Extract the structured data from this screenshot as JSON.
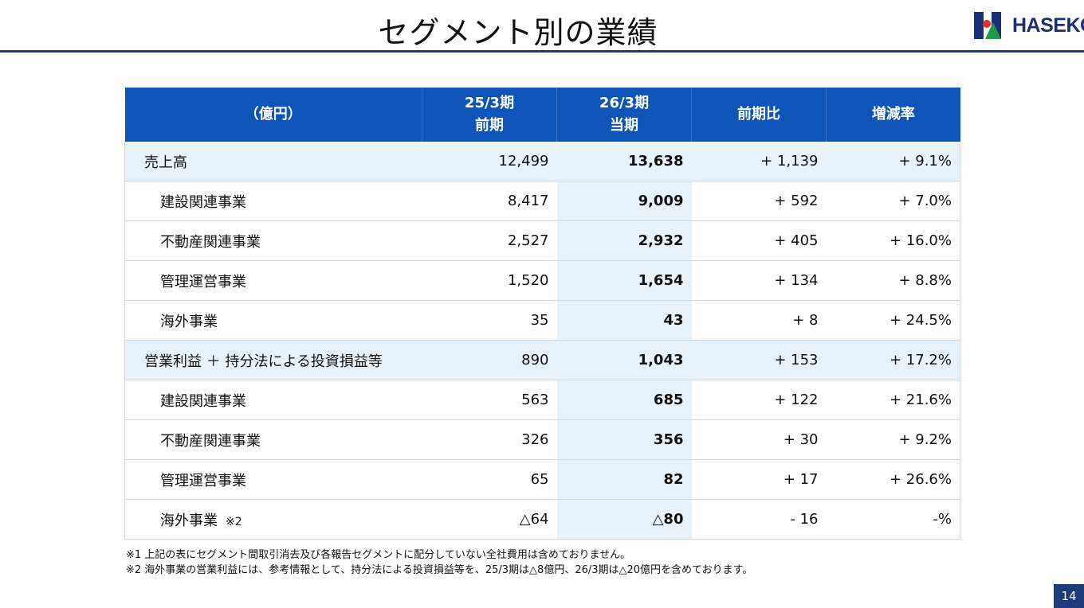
{
  "page": {
    "title": "セグメント別の業績",
    "page_number": "14"
  },
  "logo": {
    "text": "HASEKO"
  },
  "table": {
    "headers": {
      "unit": "（億円）",
      "prev_period_top": "25/3期",
      "prev_period_bottom": "前期",
      "cur_period_top": "26/3期",
      "cur_period_bottom": "当期",
      "diff": "前期比",
      "rate": "増減率"
    },
    "rows": [
      {
        "label": "売上高",
        "prev": "12,499",
        "cur": "13,638",
        "diff": "+ 1,139",
        "rate": "+ 9.1%"
      },
      {
        "label": "建設関連事業",
        "prev": "8,417",
        "cur": "9,009",
        "diff": "+ 592",
        "rate": "+ 7.0%"
      },
      {
        "label": "不動産関連事業",
        "prev": "2,527",
        "cur": "2,932",
        "diff": "+ 405",
        "rate": "+ 16.0%"
      },
      {
        "label": "管理運営事業",
        "prev": "1,520",
        "cur": "1,654",
        "diff": "+ 134",
        "rate": "+ 8.8%"
      },
      {
        "label": "海外事業",
        "prev": "35",
        "cur": "43",
        "diff": "+ 8",
        "rate": "+ 24.5%"
      },
      {
        "label": "営業利益 ＋ 持分法による投資損益等",
        "prev": "890",
        "cur": "1,043",
        "diff": "+ 153",
        "rate": "+ 17.2%"
      },
      {
        "label": "建設関連事業",
        "prev": "563",
        "cur": "685",
        "diff": "+ 122",
        "rate": "+ 21.6%"
      },
      {
        "label": "不動産関連事業",
        "prev": "326",
        "cur": "356",
        "diff": "+ 30",
        "rate": "+ 9.2%"
      },
      {
        "label": "管理運営事業",
        "prev": "65",
        "cur": "82",
        "diff": "+ 17",
        "rate": "+ 26.6%"
      },
      {
        "label": "海外事業",
        "note": "※2",
        "prev": "△64",
        "cur": "△80",
        "diff": "- 16",
        "rate": "-%"
      }
    ]
  },
  "notes": [
    "※1 上記の表にセグメント間取引消去及び各報告セグメントに配分していない全社費用は含めておりません。",
    "※2 海外事業の営業利益には、参考情報として、持分法による投資損益等を、25/3期は△8億円、26/3期は△20億円を含めております。"
  ]
}
